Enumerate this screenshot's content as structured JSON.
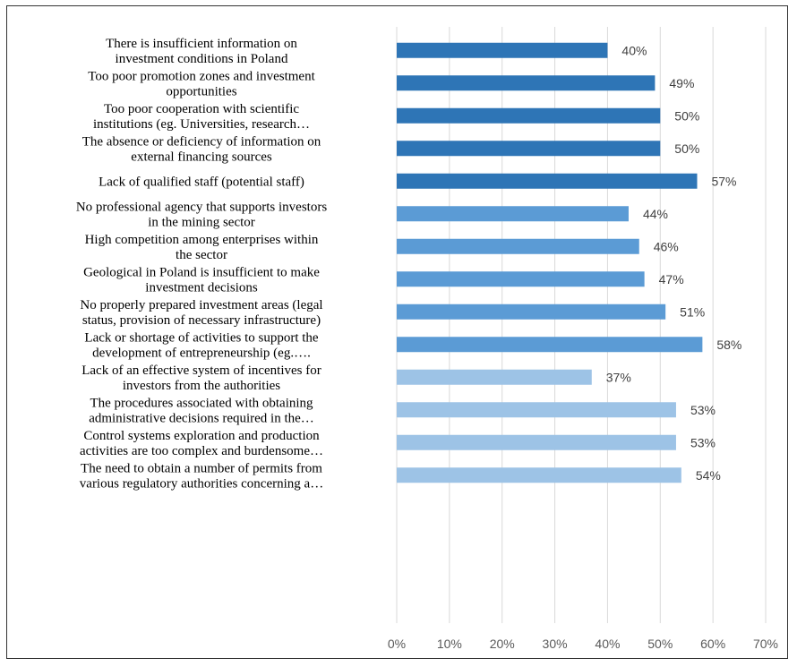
{
  "chart_data": {
    "type": "bar",
    "orientation": "horizontal",
    "title": "",
    "xlabel": "",
    "ylabel": "",
    "xlim": [
      0,
      0.7
    ],
    "x_ticks": [
      "0%",
      "10%",
      "20%",
      "30%",
      "40%",
      "50%",
      "60%",
      "70%"
    ],
    "grid": "vertical",
    "legend": "none",
    "categories": [
      [
        "There is insufficient information on",
        "investment conditions in Poland"
      ],
      [
        "Too poor promotion zones and investment",
        "opportunities"
      ],
      [
        "Too poor cooperation with scientific",
        "institutions (eg. Universities, research…"
      ],
      [
        "The absence or deficiency of information on",
        "external financing sources"
      ],
      [
        "Lack of qualified staff (potential staff)"
      ],
      [
        "No professional agency that supports investors",
        "in the mining sector"
      ],
      [
        "High competition among enterprises within",
        "the sector"
      ],
      [
        "Geological in Poland is insufficient to make",
        "investment decisions"
      ],
      [
        "No properly prepared investment areas (legal",
        "status, provision of necessary infrastructure)"
      ],
      [
        "Lack or shortage of activities to support the",
        "development of entrepreneurship (eg.…."
      ],
      [
        "Lack of an effective system of incentives for",
        "investors from the authorities"
      ],
      [
        "The procedures associated with obtaining",
        "administrative decisions required in the…"
      ],
      [
        "Control systems exploration and production",
        "activities are too complex and burdensome…"
      ],
      [
        "The need to obtain a number of permits from",
        "various regulatory authorities concerning a…"
      ]
    ],
    "values": [
      0.4,
      0.49,
      0.5,
      0.5,
      0.57,
      0.44,
      0.46,
      0.47,
      0.51,
      0.58,
      0.37,
      0.53,
      0.53,
      0.54
    ],
    "value_labels": [
      "40%",
      "49%",
      "50%",
      "50%",
      "57%",
      "44%",
      "46%",
      "47%",
      "51%",
      "58%",
      "37%",
      "53%",
      "53%",
      "54%"
    ],
    "bar_colors": [
      "#2e75b6",
      "#2e75b6",
      "#2e75b6",
      "#2e75b6",
      "#2e75b6",
      "#5b9bd5",
      "#5b9bd5",
      "#5b9bd5",
      "#5b9bd5",
      "#5b9bd5",
      "#9dc3e6",
      "#9dc3e6",
      "#9dc3e6",
      "#9dc3e6"
    ]
  }
}
